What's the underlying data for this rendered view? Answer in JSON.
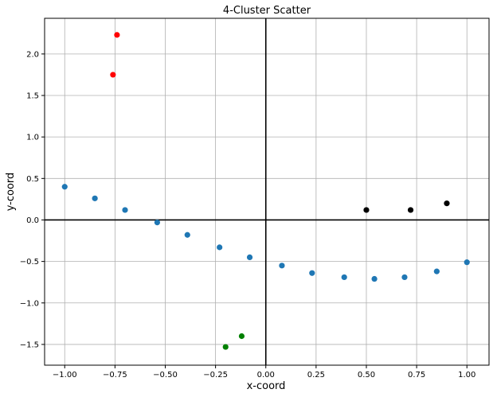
{
  "chart_data": {
    "type": "scatter",
    "title": "4-Cluster Scatter",
    "xlabel": "x-coord",
    "ylabel": "y-coord",
    "xlim": [
      -1.1,
      1.11
    ],
    "ylim": [
      -1.75,
      2.43
    ],
    "grid": true,
    "zero_lines": true,
    "xticks": [
      -1.0,
      -0.75,
      -0.5,
      -0.25,
      0.0,
      0.25,
      0.5,
      0.75,
      1.0
    ],
    "xtick_labels": [
      "−1.00",
      "−0.75",
      "−0.50",
      "−0.25",
      "0.00",
      "0.25",
      "0.50",
      "0.75",
      "1.00"
    ],
    "yticks": [
      -1.5,
      -1.0,
      -0.5,
      0.0,
      0.5,
      1.0,
      1.5,
      2.0
    ],
    "ytick_labels": [
      "−1.5",
      "−1.0",
      "−0.5",
      "0.0",
      "0.5",
      "1.0",
      "1.5",
      "2.0"
    ],
    "series": [
      {
        "color": "#1f77b4",
        "points": [
          [
            -1.0,
            0.4
          ],
          [
            -0.85,
            0.26
          ],
          [
            -0.7,
            0.12
          ],
          [
            -0.54,
            -0.03
          ],
          [
            -0.39,
            -0.18
          ],
          [
            -0.23,
            -0.33
          ],
          [
            -0.08,
            -0.45
          ],
          [
            0.08,
            -0.55
          ],
          [
            0.23,
            -0.64
          ],
          [
            0.39,
            -0.69
          ],
          [
            0.54,
            -0.71
          ],
          [
            0.69,
            -0.69
          ],
          [
            0.85,
            -0.62
          ],
          [
            1.0,
            -0.51
          ]
        ]
      },
      {
        "color": "#ff0000",
        "points": [
          [
            -0.76,
            1.75
          ],
          [
            -0.74,
            2.23
          ]
        ]
      },
      {
        "color": "#000000",
        "points": [
          [
            0.5,
            0.12
          ],
          [
            0.72,
            0.12
          ],
          [
            0.9,
            0.2
          ]
        ]
      },
      {
        "color": "#008000",
        "points": [
          [
            -0.2,
            -1.53
          ],
          [
            -0.12,
            -1.4
          ]
        ]
      }
    ]
  }
}
